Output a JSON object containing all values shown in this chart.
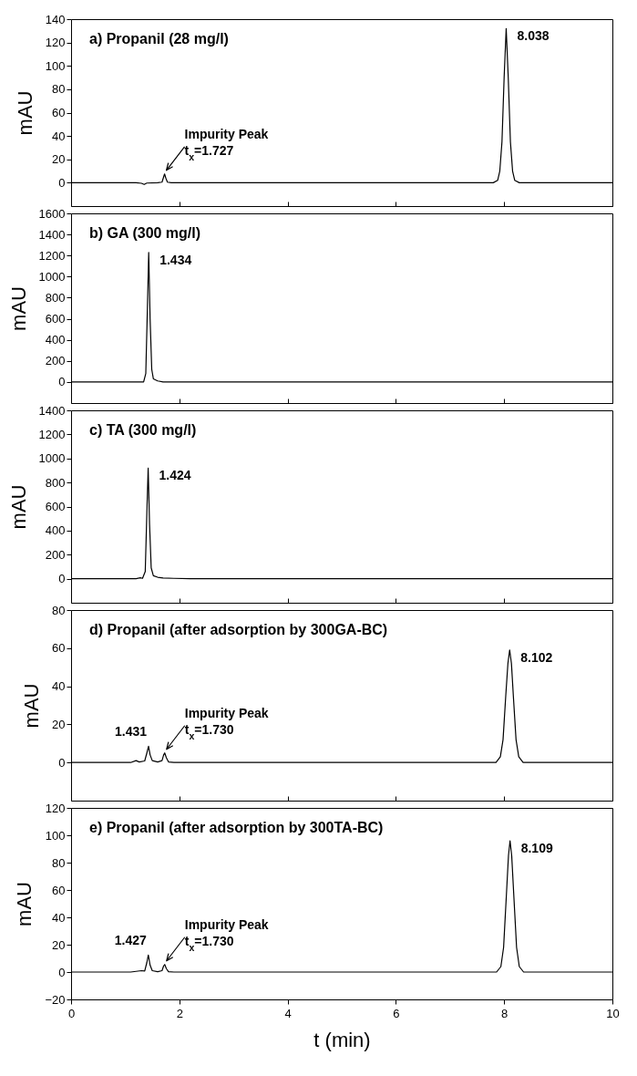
{
  "chart_data": [
    {
      "type": "line",
      "title": "a) Propanil (28 mg/l)",
      "ylabel": "mAU",
      "xlim": [
        0,
        10
      ],
      "xticks": [
        0,
        2,
        4,
        6,
        8,
        10
      ],
      "ylim": [
        -20,
        140
      ],
      "yticks": [
        0,
        20,
        40,
        60,
        80,
        100,
        120,
        140
      ],
      "tick_labels": "y",
      "series": [
        {
          "color": "#000000",
          "x": [
            0,
            1.2,
            1.3,
            1.35,
            1.4,
            1.6,
            1.68,
            1.71,
            1.727,
            1.75,
            1.78,
            1.85,
            3,
            7.8,
            7.88,
            7.92,
            7.96,
            8.0,
            8.038,
            8.076,
            8.116,
            8.156,
            8.196,
            8.28,
            10
          ],
          "values": [
            0,
            0,
            -0.5,
            -1.5,
            -0.3,
            0,
            0.5,
            5,
            7.5,
            4,
            0.5,
            0,
            0,
            0,
            2,
            10,
            35,
            90,
            132,
            90,
            35,
            10,
            2,
            0,
            0
          ]
        }
      ],
      "annotations": [
        {
          "text": "8.038",
          "x": 8.038,
          "y": 132
        },
        {
          "text": "Impurity Peak\nt$_{x}$=1.727",
          "x": 1.727,
          "y": 7.5
        }
      ]
    },
    {
      "type": "line",
      "title": "b) GA (300 mg/l)",
      "ylabel": "mAU",
      "xlim": [
        0,
        10
      ],
      "xticks": [
        0,
        2,
        4,
        6,
        8,
        10
      ],
      "ylim": [
        -200,
        1600
      ],
      "yticks": [
        0,
        200,
        400,
        600,
        800,
        1000,
        1200,
        1400,
        1600
      ],
      "tick_labels": "y",
      "series": [
        {
          "color": "#000000",
          "x": [
            0,
            1.2,
            1.34,
            1.38,
            1.41,
            1.434,
            1.46,
            1.49,
            1.52,
            1.6,
            1.7,
            1.85,
            10
          ],
          "values": [
            0,
            0,
            0,
            80,
            700,
            1230,
            600,
            120,
            30,
            10,
            0,
            0,
            0
          ]
        }
      ],
      "annotations": [
        {
          "text": "1.434",
          "x": 1.434,
          "y": 1230
        }
      ]
    },
    {
      "type": "line",
      "title": "c) TA (300 mg/l)",
      "ylabel": "mAU",
      "xlim": [
        0,
        10
      ],
      "xticks": [
        0,
        2,
        4,
        6,
        8,
        10
      ],
      "ylim": [
        -200,
        1400
      ],
      "yticks": [
        0,
        200,
        400,
        600,
        800,
        1000,
        1200,
        1400
      ],
      "tick_labels": "y",
      "series": [
        {
          "color": "#000000",
          "x": [
            0,
            1.2,
            1.28,
            1.32,
            1.37,
            1.4,
            1.424,
            1.45,
            1.48,
            1.52,
            1.6,
            1.7,
            1.9,
            2.2,
            10
          ],
          "values": [
            0,
            0,
            8,
            3,
            60,
            550,
            920,
            450,
            90,
            25,
            12,
            6,
            3,
            0,
            0
          ]
        }
      ],
      "annotations": [
        {
          "text": "1.424",
          "x": 1.424,
          "y": 920
        }
      ]
    },
    {
      "type": "line",
      "title": "d) Propanil (after adsorption by 300GA-BC)",
      "ylabel": "mAU",
      "xlim": [
        0,
        10
      ],
      "xticks": [
        0,
        2,
        4,
        6,
        8,
        10
      ],
      "ylim": [
        -20,
        80
      ],
      "yticks": [
        0,
        20,
        40,
        60,
        80
      ],
      "tick_labels": "y",
      "series": [
        {
          "color": "#000000",
          "x": [
            0,
            1.1,
            1.2,
            1.26,
            1.36,
            1.4,
            1.431,
            1.46,
            1.5,
            1.6,
            1.68,
            1.71,
            1.73,
            1.76,
            1.8,
            1.9,
            7.85,
            7.93,
            7.98,
            8.03,
            8.07,
            8.102,
            8.135,
            8.17,
            8.22,
            8.27,
            8.35,
            10
          ],
          "values": [
            0,
            0,
            1,
            0.3,
            0.8,
            5,
            8.5,
            4,
            1,
            0.3,
            1,
            4,
            5,
            2.5,
            0.3,
            0,
            0,
            3,
            12,
            35,
            52,
            59,
            52,
            35,
            12,
            3,
            0,
            0
          ]
        }
      ],
      "annotations": [
        {
          "text": "8.102",
          "x": 8.102,
          "y": 59
        },
        {
          "text": "1.431",
          "x": 1.431,
          "y": 8.5
        },
        {
          "text": "Impurity Peak\nt$_{x}$=1.730",
          "x": 1.73,
          "y": 5
        }
      ]
    },
    {
      "type": "line",
      "title": "e) Propanil (after adsorption by 300TA-BC)",
      "ylabel": "mAU",
      "xlabel": "t (min)",
      "xlim": [
        0,
        10
      ],
      "xticks": [
        0,
        2,
        4,
        6,
        8,
        10
      ],
      "ylim": [
        -20,
        120
      ],
      "yticks": [
        -20,
        0,
        20,
        40,
        60,
        80,
        100,
        120
      ],
      "series": [
        {
          "color": "#000000",
          "x": [
            0,
            1.1,
            1.2,
            1.3,
            1.36,
            1.4,
            1.427,
            1.46,
            1.5,
            1.6,
            1.68,
            1.71,
            1.73,
            1.76,
            1.8,
            1.9,
            7.86,
            7.94,
            7.99,
            8.04,
            8.08,
            8.109,
            8.14,
            8.18,
            8.23,
            8.28,
            8.36,
            10
          ],
          "values": [
            0,
            0,
            0.5,
            1,
            0.8,
            7,
            12.5,
            5,
            1,
            0.3,
            1,
            4.5,
            5.5,
            2.5,
            0.3,
            0,
            0,
            4,
            18,
            55,
            85,
            96,
            85,
            55,
            18,
            4,
            0,
            0
          ]
        }
      ],
      "annotations": [
        {
          "text": "8.109",
          "x": 8.109,
          "y": 96
        },
        {
          "text": "1.427",
          "x": 1.427,
          "y": 12.5
        },
        {
          "text": "Impurity Peak\nt$_{x}$=1.730",
          "x": 1.73,
          "y": 5.5
        }
      ]
    }
  ]
}
